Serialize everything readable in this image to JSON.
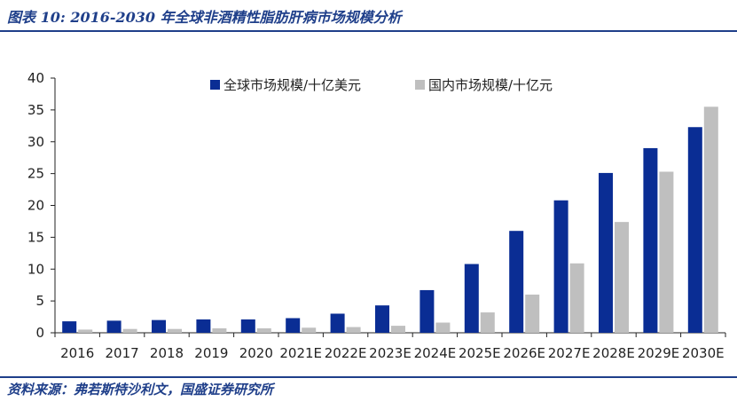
{
  "figure": {
    "title": "图表 10:  2016-2030 年全球非酒精性脂肪肝病市场规模分析",
    "source": "资料来源：弗若斯特沙利文，国盛证券研究所"
  },
  "colors": {
    "global": "#0a2d94",
    "domestic": "#bfbfbf",
    "accent": "#1f3f8a"
  },
  "chart_data": {
    "type": "bar",
    "title": "",
    "xlabel": "",
    "ylabel": "",
    "ylim": [
      0,
      40
    ],
    "yticks": [
      0,
      5,
      10,
      15,
      20,
      25,
      30,
      35,
      40
    ],
    "grid": false,
    "legend_position": "top",
    "categories": [
      "2016",
      "2017",
      "2018",
      "2019",
      "2020",
      "2021E",
      "2022E",
      "2023E",
      "2024E",
      "2025E",
      "2026E",
      "2027E",
      "2028E",
      "2029E",
      "2030E"
    ],
    "series": [
      {
        "name": "全球市场规模/十亿美元",
        "values": [
          1.8,
          1.9,
          2.0,
          2.1,
          2.1,
          2.3,
          3.0,
          4.3,
          6.7,
          10.8,
          16.0,
          20.8,
          25.1,
          29.0,
          32.3
        ]
      },
      {
        "name": "国内市场规模/十亿元",
        "values": [
          0.5,
          0.6,
          0.6,
          0.7,
          0.7,
          0.8,
          0.9,
          1.1,
          1.6,
          3.2,
          6.0,
          10.9,
          17.4,
          25.3,
          35.5
        ]
      }
    ]
  }
}
